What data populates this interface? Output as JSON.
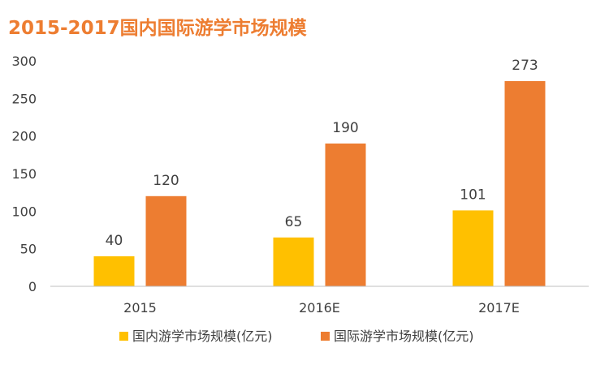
{
  "chart_data": {
    "type": "bar",
    "title": "2015-2017国内国际游学市场规模",
    "xlabel": "",
    "ylabel": "",
    "categories": [
      "2015",
      "2016E",
      "2017E"
    ],
    "ylim": [
      0,
      300
    ],
    "yticks": [
      0,
      50,
      100,
      150,
      200,
      250,
      300
    ],
    "grid": false,
    "legend": "bottom",
    "data_labels": true,
    "series": [
      {
        "name": "国内游学市场规模(亿元)",
        "values": [
          40,
          65,
          101
        ],
        "color": "#FFC000"
      },
      {
        "name": "国际游学市场规模(亿元)",
        "values": [
          120,
          190,
          273
        ],
        "color": "#ED7D31"
      }
    ],
    "colors": {
      "title": "#ED7D31",
      "text": "#404040",
      "axis": "#BFBFBF"
    }
  }
}
